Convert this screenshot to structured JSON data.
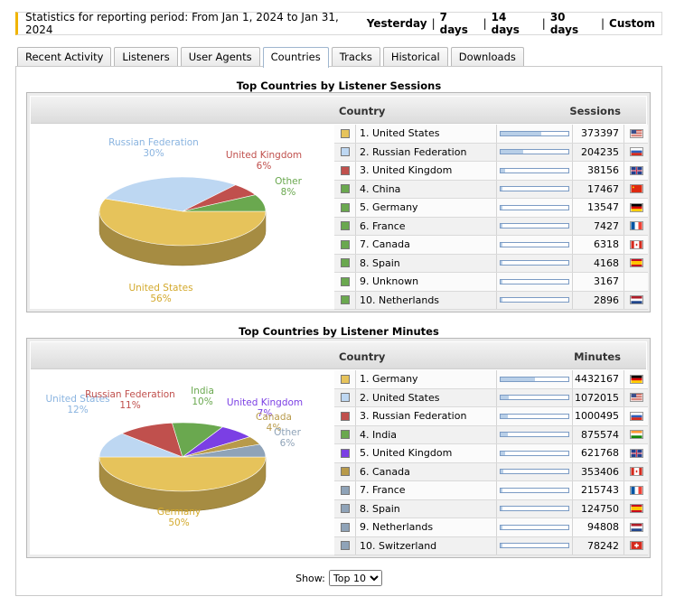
{
  "period_text": "Statistics for reporting period: From Jan 1, 2024 to Jan 31, 2024",
  "ranges": [
    "Yesterday",
    "7 days",
    "14 days",
    "30 days",
    "Custom"
  ],
  "tabs": [
    "Recent Activity",
    "Listeners",
    "User Agents",
    "Countries",
    "Tracks",
    "Historical",
    "Downloads"
  ],
  "active_tab": "Countries",
  "sessions": {
    "title": "Top Countries by Listener Sessions",
    "col_country": "Country",
    "col_metric": "Sessions",
    "rows": [
      {
        "label": "1. United States",
        "value": "373397",
        "fraction": 0.6,
        "color": "#e6c35b",
        "flag": "us"
      },
      {
        "label": "2. Russian Federation",
        "value": "204235",
        "fraction": 0.33,
        "color": "#bdd7f2",
        "flag": "ru"
      },
      {
        "label": "3. United Kingdom",
        "value": "38156",
        "fraction": 0.06,
        "color": "#c0504d",
        "flag": "gb"
      },
      {
        "label": "4. China",
        "value": "17467",
        "fraction": 0.03,
        "color": "#6aa84f",
        "flag": "cn"
      },
      {
        "label": "5. Germany",
        "value": "13547",
        "fraction": 0.02,
        "color": "#6aa84f",
        "flag": "de"
      },
      {
        "label": "6. France",
        "value": "7427",
        "fraction": 0.015,
        "color": "#6aa84f",
        "flag": "fr"
      },
      {
        "label": "7. Canada",
        "value": "6318",
        "fraction": 0.01,
        "color": "#6aa84f",
        "flag": "ca"
      },
      {
        "label": "8. Spain",
        "value": "4168",
        "fraction": 0.01,
        "color": "#6aa84f",
        "flag": "es"
      },
      {
        "label": "9. Unknown",
        "value": "3167",
        "fraction": 0.005,
        "color": "#6aa84f",
        "flag": ""
      },
      {
        "label": "10. Netherlands",
        "value": "2896",
        "fraction": 0.005,
        "color": "#6aa84f",
        "flag": "nl"
      }
    ],
    "chart_data": {
      "type": "pie",
      "slices": [
        {
          "name": "United States",
          "percent": 56,
          "color": "#e6c35b"
        },
        {
          "name": "Russian Federation",
          "percent": 30,
          "color": "#bdd7f2"
        },
        {
          "name": "United Kingdom",
          "percent": 6,
          "color": "#c0504d"
        },
        {
          "name": "Other",
          "percent": 8,
          "color": "#6aa84f"
        }
      ]
    }
  },
  "minutes": {
    "title": "Top Countries by Listener Minutes",
    "col_country": "Country",
    "col_metric": "Minutes",
    "rows": [
      {
        "label": "1. Germany",
        "value": "4432167",
        "fraction": 0.5,
        "color": "#e6c35b",
        "flag": "de"
      },
      {
        "label": "2. United States",
        "value": "1072015",
        "fraction": 0.12,
        "color": "#bdd7f2",
        "flag": "us"
      },
      {
        "label": "3. Russian Federation",
        "value": "1000495",
        "fraction": 0.11,
        "color": "#c0504d",
        "flag": "ru"
      },
      {
        "label": "4. India",
        "value": "875574",
        "fraction": 0.1,
        "color": "#6aa84f",
        "flag": "in"
      },
      {
        "label": "5. United Kingdom",
        "value": "621768",
        "fraction": 0.07,
        "color": "#7b3fe4",
        "flag": "gb"
      },
      {
        "label": "6. Canada",
        "value": "353406",
        "fraction": 0.04,
        "color": "#b89a4a",
        "flag": "ca"
      },
      {
        "label": "7. France",
        "value": "215743",
        "fraction": 0.025,
        "color": "#8fa3b8",
        "flag": "fr"
      },
      {
        "label": "8. Spain",
        "value": "124750",
        "fraction": 0.015,
        "color": "#8fa3b8",
        "flag": "es"
      },
      {
        "label": "9. Netherlands",
        "value": "94808",
        "fraction": 0.01,
        "color": "#8fa3b8",
        "flag": "nl"
      },
      {
        "label": "10. Switzerland",
        "value": "78242",
        "fraction": 0.01,
        "color": "#8fa3b8",
        "flag": "ch"
      }
    ],
    "chart_data": {
      "type": "pie",
      "slices": [
        {
          "name": "Germany",
          "percent": 50,
          "color": "#e6c35b"
        },
        {
          "name": "United States",
          "percent": 12,
          "color": "#bdd7f2"
        },
        {
          "name": "Russian Federation",
          "percent": 11,
          "color": "#c0504d"
        },
        {
          "name": "India",
          "percent": 10,
          "color": "#6aa84f"
        },
        {
          "name": "United Kingdom",
          "percent": 7,
          "color": "#7b3fe4"
        },
        {
          "name": "Canada",
          "percent": 4,
          "color": "#b89a4a"
        },
        {
          "name": "Other",
          "percent": 6,
          "color": "#8fa3b8"
        }
      ]
    }
  },
  "show": {
    "label": "Show:",
    "options": [
      "Top 10"
    ],
    "selected": "Top 10"
  }
}
